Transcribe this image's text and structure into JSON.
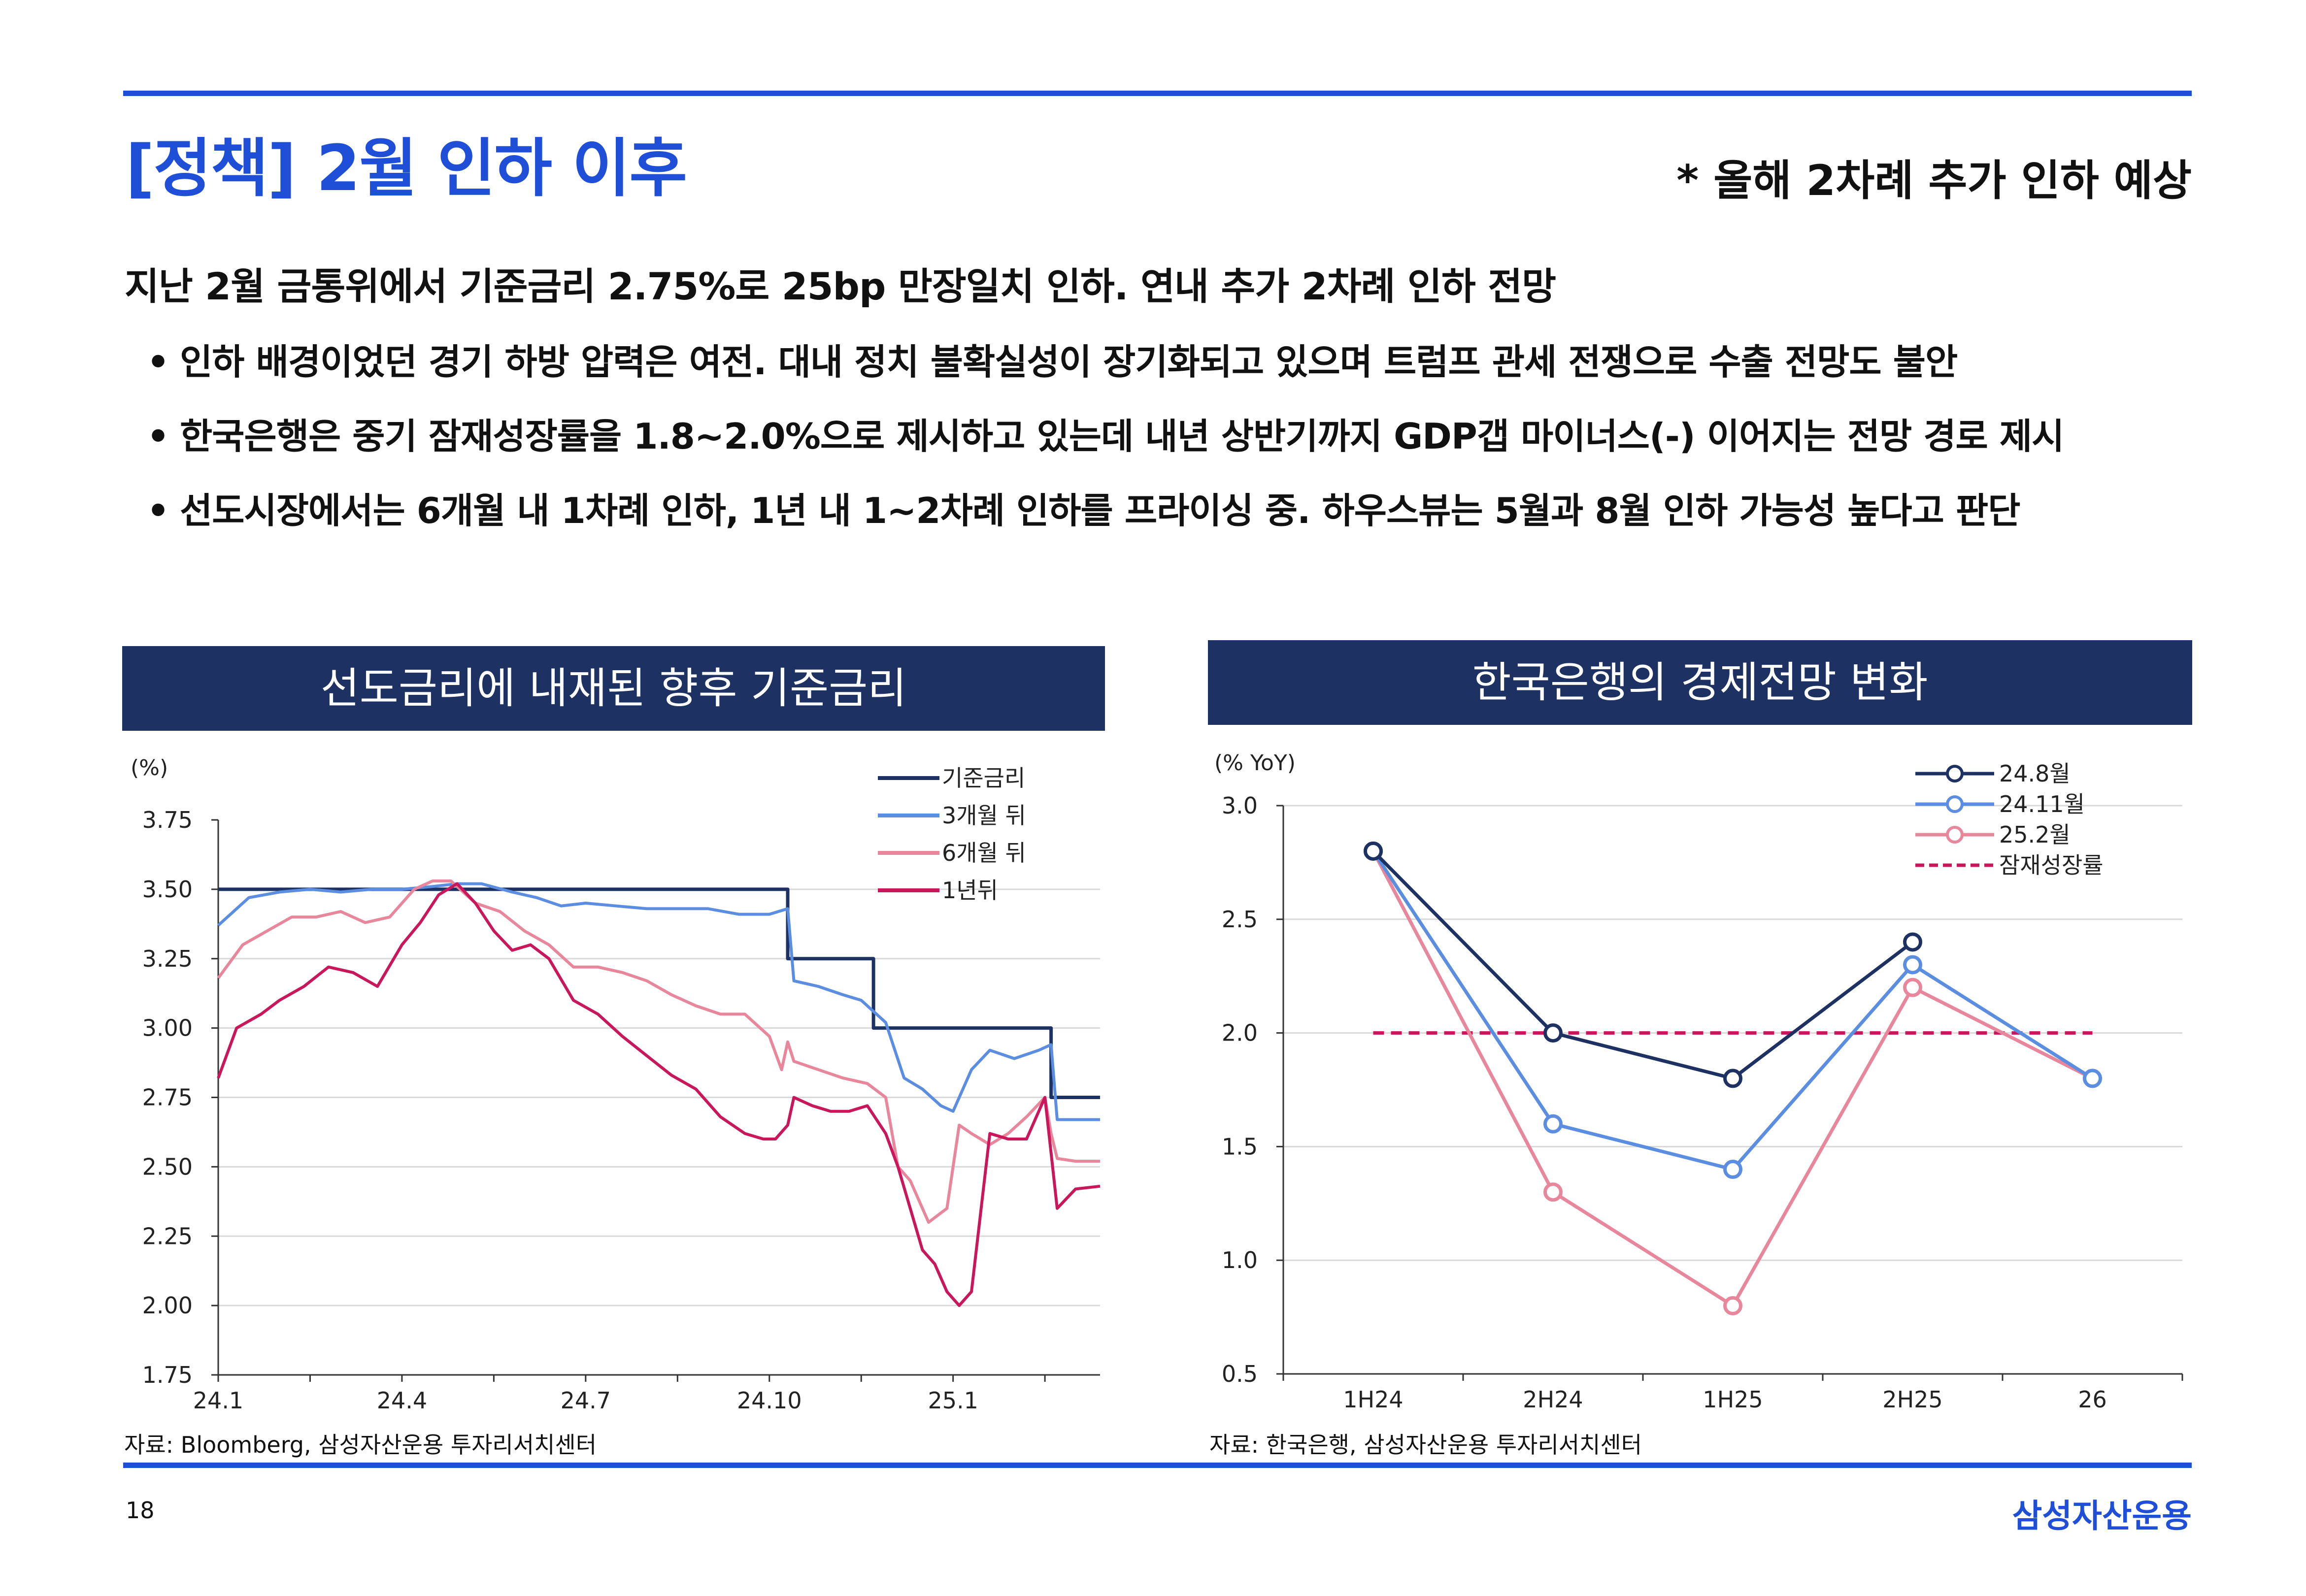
{
  "title": "[정책] 2월 인하 이후",
  "note": "* 올해 2차례 추가 인하 예상",
  "summary": "지난 2월 금통위에서 기준금리 2.75%로 25bp 만장일치 인하. 연내 추가 2차례 인하 전망",
  "bullets": [
    "인하 배경이었던 경기 하방 압력은 여전. 대내 정치 불확실성이 장기화되고 있으며 트럼프 관세 전쟁으로 수출 전망도 불안",
    "한국은행은 중기 잠재성장률을 1.8~2.0%으로 제시하고 있는데 내년 상반기까지 GDP갭 마이너스(-) 이어지는 전망 경로 제시",
    "선도시장에서는 6개월 내 1차례 인하, 1년 내 1~2차례 인하를 프라이싱 중. 하우스뷰는 5월과 8월 인하 가능성 높다고 판단"
  ],
  "bullet_mark": "•",
  "footer": {
    "page": "18",
    "brand": "삼성자산운용"
  },
  "colors": {
    "accent": "#1f4fd6",
    "header_bg": "#1e3163"
  },
  "chart_data": [
    {
      "type": "line",
      "title": "선도금리에 내재된 향후 기준금리",
      "unit_label": "(%)",
      "source": "자료: Bloomberg, 삼성자산운용 투자리서치센터",
      "ylim": [
        1.75,
        3.75
      ],
      "yticks": [
        "3.75",
        "3.50",
        "3.25",
        "3.00",
        "2.75",
        "2.50",
        "2.25",
        "2.00",
        "1.75"
      ],
      "xlim": [
        0,
        14.4
      ],
      "xticks": [
        {
          "pos": 0,
          "label": "24.1"
        },
        {
          "pos": 3,
          "label": "24.4"
        },
        {
          "pos": 6,
          "label": "24.7"
        },
        {
          "pos": 9,
          "label": "24.10"
        },
        {
          "pos": 12,
          "label": "25.1"
        }
      ],
      "grid": true,
      "legend": "top-right",
      "series": [
        {
          "name": "기준금리",
          "color": "#1e3163",
          "width": 7,
          "x": [
            0,
            9.3,
            9.3,
            10.7,
            10.7,
            13.6,
            13.6,
            14.4
          ],
          "y": [
            3.5,
            3.5,
            3.25,
            3.25,
            3.0,
            3.0,
            2.75,
            2.75
          ]
        },
        {
          "name": "3개월 뒤",
          "color": "#5b8de0",
          "width": 6,
          "x": [
            0,
            0.5,
            1,
            1.5,
            2,
            2.5,
            3,
            3.5,
            3.9,
            4.3,
            4.8,
            5.2,
            5.6,
            6,
            6.5,
            7,
            7.5,
            8,
            8.5,
            9,
            9.3,
            9.4,
            9.8,
            10.2,
            10.5,
            10.9,
            11.2,
            11.5,
            11.8,
            12,
            12.3,
            12.6,
            13,
            13.4,
            13.6,
            13.7,
            14,
            14.4
          ],
          "y": [
            3.37,
            3.47,
            3.49,
            3.5,
            3.49,
            3.5,
            3.5,
            3.51,
            3.52,
            3.52,
            3.49,
            3.47,
            3.44,
            3.45,
            3.44,
            3.43,
            3.43,
            3.43,
            3.41,
            3.41,
            3.43,
            3.17,
            3.15,
            3.12,
            3.1,
            3.02,
            2.82,
            2.78,
            2.72,
            2.7,
            2.85,
            2.92,
            2.89,
            2.92,
            2.94,
            2.67,
            2.67,
            2.67
          ]
        },
        {
          "name": "6개월 뒤",
          "color": "#e8869b",
          "width": 6,
          "x": [
            0,
            0.4,
            0.8,
            1.2,
            1.6,
            2,
            2.4,
            2.8,
            3.2,
            3.5,
            3.8,
            4.2,
            4.6,
            5,
            5.4,
            5.8,
            6.2,
            6.6,
            7,
            7.4,
            7.8,
            8.2,
            8.6,
            9,
            9.2,
            9.3,
            9.4,
            9.8,
            10.2,
            10.6,
            10.9,
            11.1,
            11.3,
            11.6,
            11.9,
            12.1,
            12.3,
            12.6,
            12.9,
            13.2,
            13.5,
            13.6,
            13.7,
            14,
            14.4
          ],
          "y": [
            3.18,
            3.3,
            3.35,
            3.4,
            3.4,
            3.42,
            3.38,
            3.4,
            3.5,
            3.53,
            3.53,
            3.45,
            3.42,
            3.35,
            3.3,
            3.22,
            3.22,
            3.2,
            3.17,
            3.12,
            3.08,
            3.05,
            3.05,
            2.97,
            2.85,
            2.95,
            2.88,
            2.85,
            2.82,
            2.8,
            2.75,
            2.5,
            2.45,
            2.3,
            2.35,
            2.65,
            2.62,
            2.58,
            2.62,
            2.68,
            2.75,
            2.62,
            2.53,
            2.52,
            2.52
          ]
        },
        {
          "name": "1년뒤",
          "color": "#c8185b",
          "width": 6,
          "x": [
            0,
            0.3,
            0.7,
            1,
            1.4,
            1.8,
            2.2,
            2.6,
            3,
            3.3,
            3.6,
            3.9,
            4.2,
            4.5,
            4.8,
            5.1,
            5.4,
            5.8,
            6.2,
            6.6,
            7,
            7.4,
            7.8,
            8.2,
            8.6,
            8.9,
            9.1,
            9.3,
            9.4,
            9.7,
            10,
            10.3,
            10.6,
            10.9,
            11.1,
            11.3,
            11.5,
            11.7,
            11.9,
            12.1,
            12.3,
            12.6,
            12.9,
            13.2,
            13.5,
            13.6,
            13.7,
            14,
            14.4
          ],
          "y": [
            2.82,
            3.0,
            3.05,
            3.1,
            3.15,
            3.22,
            3.2,
            3.15,
            3.3,
            3.38,
            3.48,
            3.52,
            3.45,
            3.35,
            3.28,
            3.3,
            3.25,
            3.1,
            3.05,
            2.97,
            2.9,
            2.83,
            2.78,
            2.68,
            2.62,
            2.6,
            2.6,
            2.65,
            2.75,
            2.72,
            2.7,
            2.7,
            2.72,
            2.62,
            2.5,
            2.35,
            2.2,
            2.15,
            2.05,
            2.0,
            2.05,
            2.62,
            2.6,
            2.6,
            2.75,
            2.55,
            2.35,
            2.42,
            2.43
          ]
        }
      ]
    },
    {
      "type": "line",
      "title": "한국은행의 경제전망 변화",
      "unit_label": "(% YoY)",
      "source": "자료: 한국은행, 삼성자산운용 투자리서치센터",
      "categories": [
        "1H24",
        "2H24",
        "1H25",
        "2H25",
        "26"
      ],
      "ylim": [
        0.5,
        3.0
      ],
      "yticks": [
        "3.0",
        "2.5",
        "2.0",
        "1.5",
        "1.0",
        "0.5"
      ],
      "grid": true,
      "legend": "top-right",
      "series": [
        {
          "name": "24.8월",
          "color": "#1e3163",
          "values": [
            2.8,
            2.0,
            1.8,
            2.4,
            null
          ]
        },
        {
          "name": "24.11월",
          "color": "#5b8de0",
          "values": [
            2.8,
            1.6,
            1.4,
            2.3,
            1.8
          ]
        },
        {
          "name": "25.2월",
          "color": "#e8869b",
          "values": [
            2.8,
            1.3,
            0.8,
            2.2,
            1.8
          ]
        },
        {
          "name": "잠재성장률",
          "color": "#c8185b",
          "dashed": true,
          "values": [
            2.0,
            2.0,
            2.0,
            2.0,
            2.0
          ]
        }
      ]
    }
  ]
}
